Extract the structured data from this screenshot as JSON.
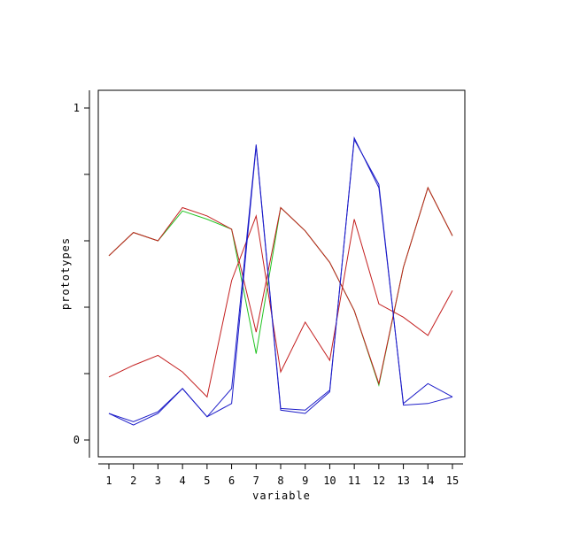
{
  "chart_data": {
    "type": "line",
    "title": "",
    "xlabel": "variable",
    "ylabel": "prototypes",
    "x": [
      1,
      2,
      3,
      4,
      5,
      6,
      7,
      8,
      9,
      10,
      11,
      12,
      13,
      14,
      15
    ],
    "xlim": [
      1,
      15
    ],
    "ylim": [
      0,
      1
    ],
    "y_tick_values": [
      0,
      0.2,
      0.4,
      0.6,
      0.8,
      1.0
    ],
    "y_tick_labels": [
      "0",
      "",
      "",
      "",
      "",
      "1"
    ],
    "x_tick_labels": [
      "1",
      "2",
      "3",
      "4",
      "5",
      "6",
      "7",
      "8",
      "9",
      "10",
      "11",
      "12",
      "13",
      "14",
      "15"
    ],
    "grid": false,
    "legend": "none",
    "series": [
      {
        "color": "#22c322",
        "values": [
          0.555,
          0.625,
          0.6,
          0.69,
          0.665,
          0.635,
          0.26,
          0.7,
          0.63,
          0.535,
          0.39,
          0.165,
          0.52,
          0.76,
          0.615
        ]
      },
      {
        "color": "#c42020",
        "values": [
          0.555,
          0.625,
          0.6,
          0.7,
          0.675,
          0.635,
          0.325,
          0.7,
          0.63,
          0.535,
          0.39,
          0.17,
          0.52,
          0.76,
          0.615
        ]
      },
      {
        "color": "#c42020",
        "values": [
          0.19,
          0.225,
          0.255,
          0.205,
          0.13,
          0.48,
          0.675,
          0.205,
          0.355,
          0.24,
          0.665,
          0.41,
          0.37,
          0.315,
          0.45
        ]
      },
      {
        "color": "#1c1cc8",
        "values": [
          0.08,
          0.055,
          0.085,
          0.155,
          0.07,
          0.155,
          0.89,
          0.095,
          0.09,
          0.15,
          0.905,
          0.77,
          0.105,
          0.11,
          0.13
        ]
      },
      {
        "color": "#1c1cc8",
        "values": [
          0.08,
          0.045,
          0.08,
          0.155,
          0.07,
          0.11,
          0.885,
          0.09,
          0.08,
          0.145,
          0.91,
          0.76,
          0.11,
          0.17,
          0.13
        ]
      }
    ]
  }
}
